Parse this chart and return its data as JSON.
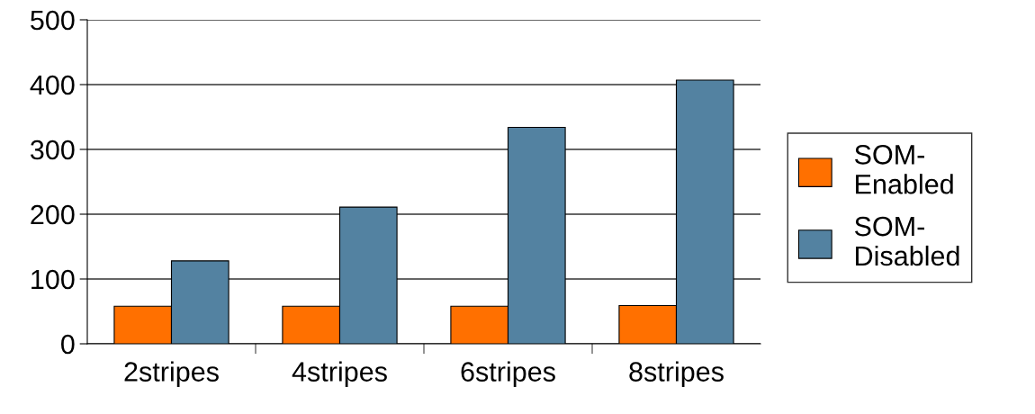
{
  "chart_data": {
    "type": "bar",
    "categories": [
      "2stripes",
      "4stripes",
      "6stripes",
      "8stripes"
    ],
    "series": [
      {
        "name": "SOM-\nEnabled",
        "color": "#ff7000",
        "values": [
          58,
          58,
          58,
          59
        ]
      },
      {
        "name": "SOM-\nDisabled",
        "color": "#5382a1",
        "values": [
          128,
          211,
          334,
          407
        ]
      }
    ],
    "ylim": [
      0,
      500
    ],
    "yticks": [
      0,
      100,
      200,
      300,
      400,
      500
    ],
    "grid": "y",
    "legend": "right"
  }
}
